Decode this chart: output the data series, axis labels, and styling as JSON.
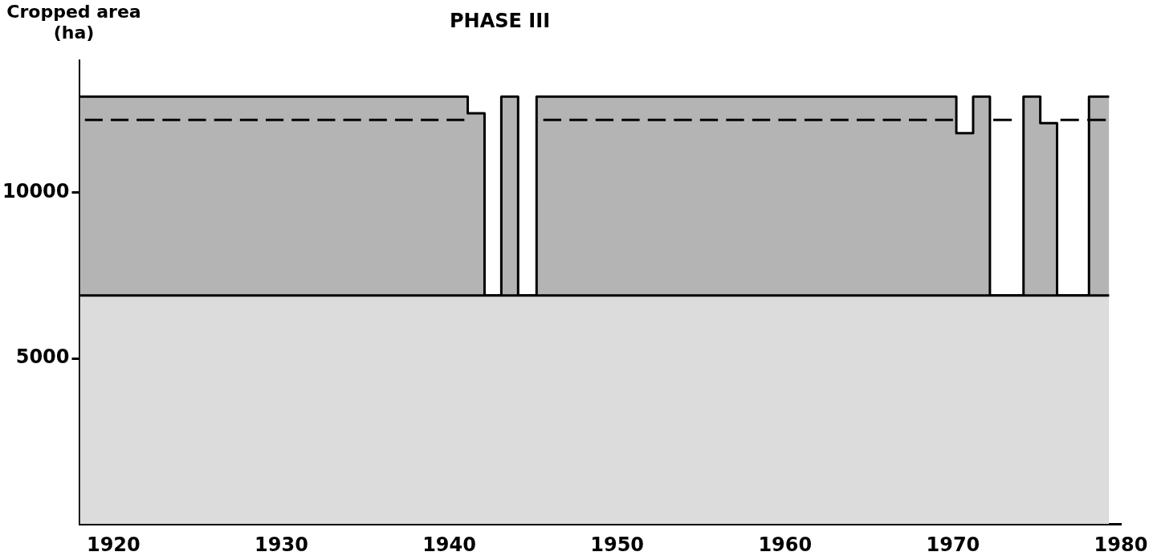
{
  "chart_data": {
    "type": "area",
    "title": "PHASE III",
    "ylabel": "Cropped area (ha)",
    "xlim": [
      1918,
      1980
    ],
    "xticks": [
      1920,
      1930,
      1940,
      1950,
      1960,
      1970,
      1980
    ],
    "ylim": [
      0,
      14000
    ],
    "yticks": [
      5000,
      10000
    ],
    "grid": false,
    "legend": false,
    "marker": "none",
    "series": [
      {
        "type": "area",
        "color": "#b4b4b4",
        "x": [
          1918,
          1941.1,
          1941.1,
          1942.1,
          1942.1,
          1943.1,
          1943.1,
          1944.1,
          1944.1,
          1945.2,
          1945.2,
          1970.2,
          1970.2,
          1971.2,
          1971.2,
          1972.2,
          1972.2,
          1974.2,
          1974.2,
          1975.2,
          1975.2,
          1976.2,
          1976.2,
          1978.1,
          1978.1,
          1979.3
        ],
        "values": [
          12900,
          12900,
          12400,
          12400,
          6900,
          6900,
          12900,
          12900,
          6900,
          6900,
          12900,
          12900,
          11800,
          11800,
          12900,
          12900,
          6900,
          6900,
          12900,
          12900,
          12100,
          12100,
          6900,
          6900,
          12900,
          12900
        ]
      },
      {
        "type": "area",
        "color": "#dcdcdc",
        "x": [
          1918,
          1979.3
        ],
        "values": [
          6900,
          6900
        ]
      },
      {
        "type": "line",
        "color": "#000000",
        "line_style": "dashed",
        "x": [
          1918.3,
          1940.9,
          1941.2,
          1945.6,
          1970.0,
          1970.3,
          1972.4,
          1973.5,
          1974.3,
          1976.4,
          1979.1
        ],
        "values": [
          12200,
          12200,
          null,
          12200,
          12200,
          null,
          12200,
          12200,
          null,
          12200,
          12200
        ]
      }
    ]
  }
}
